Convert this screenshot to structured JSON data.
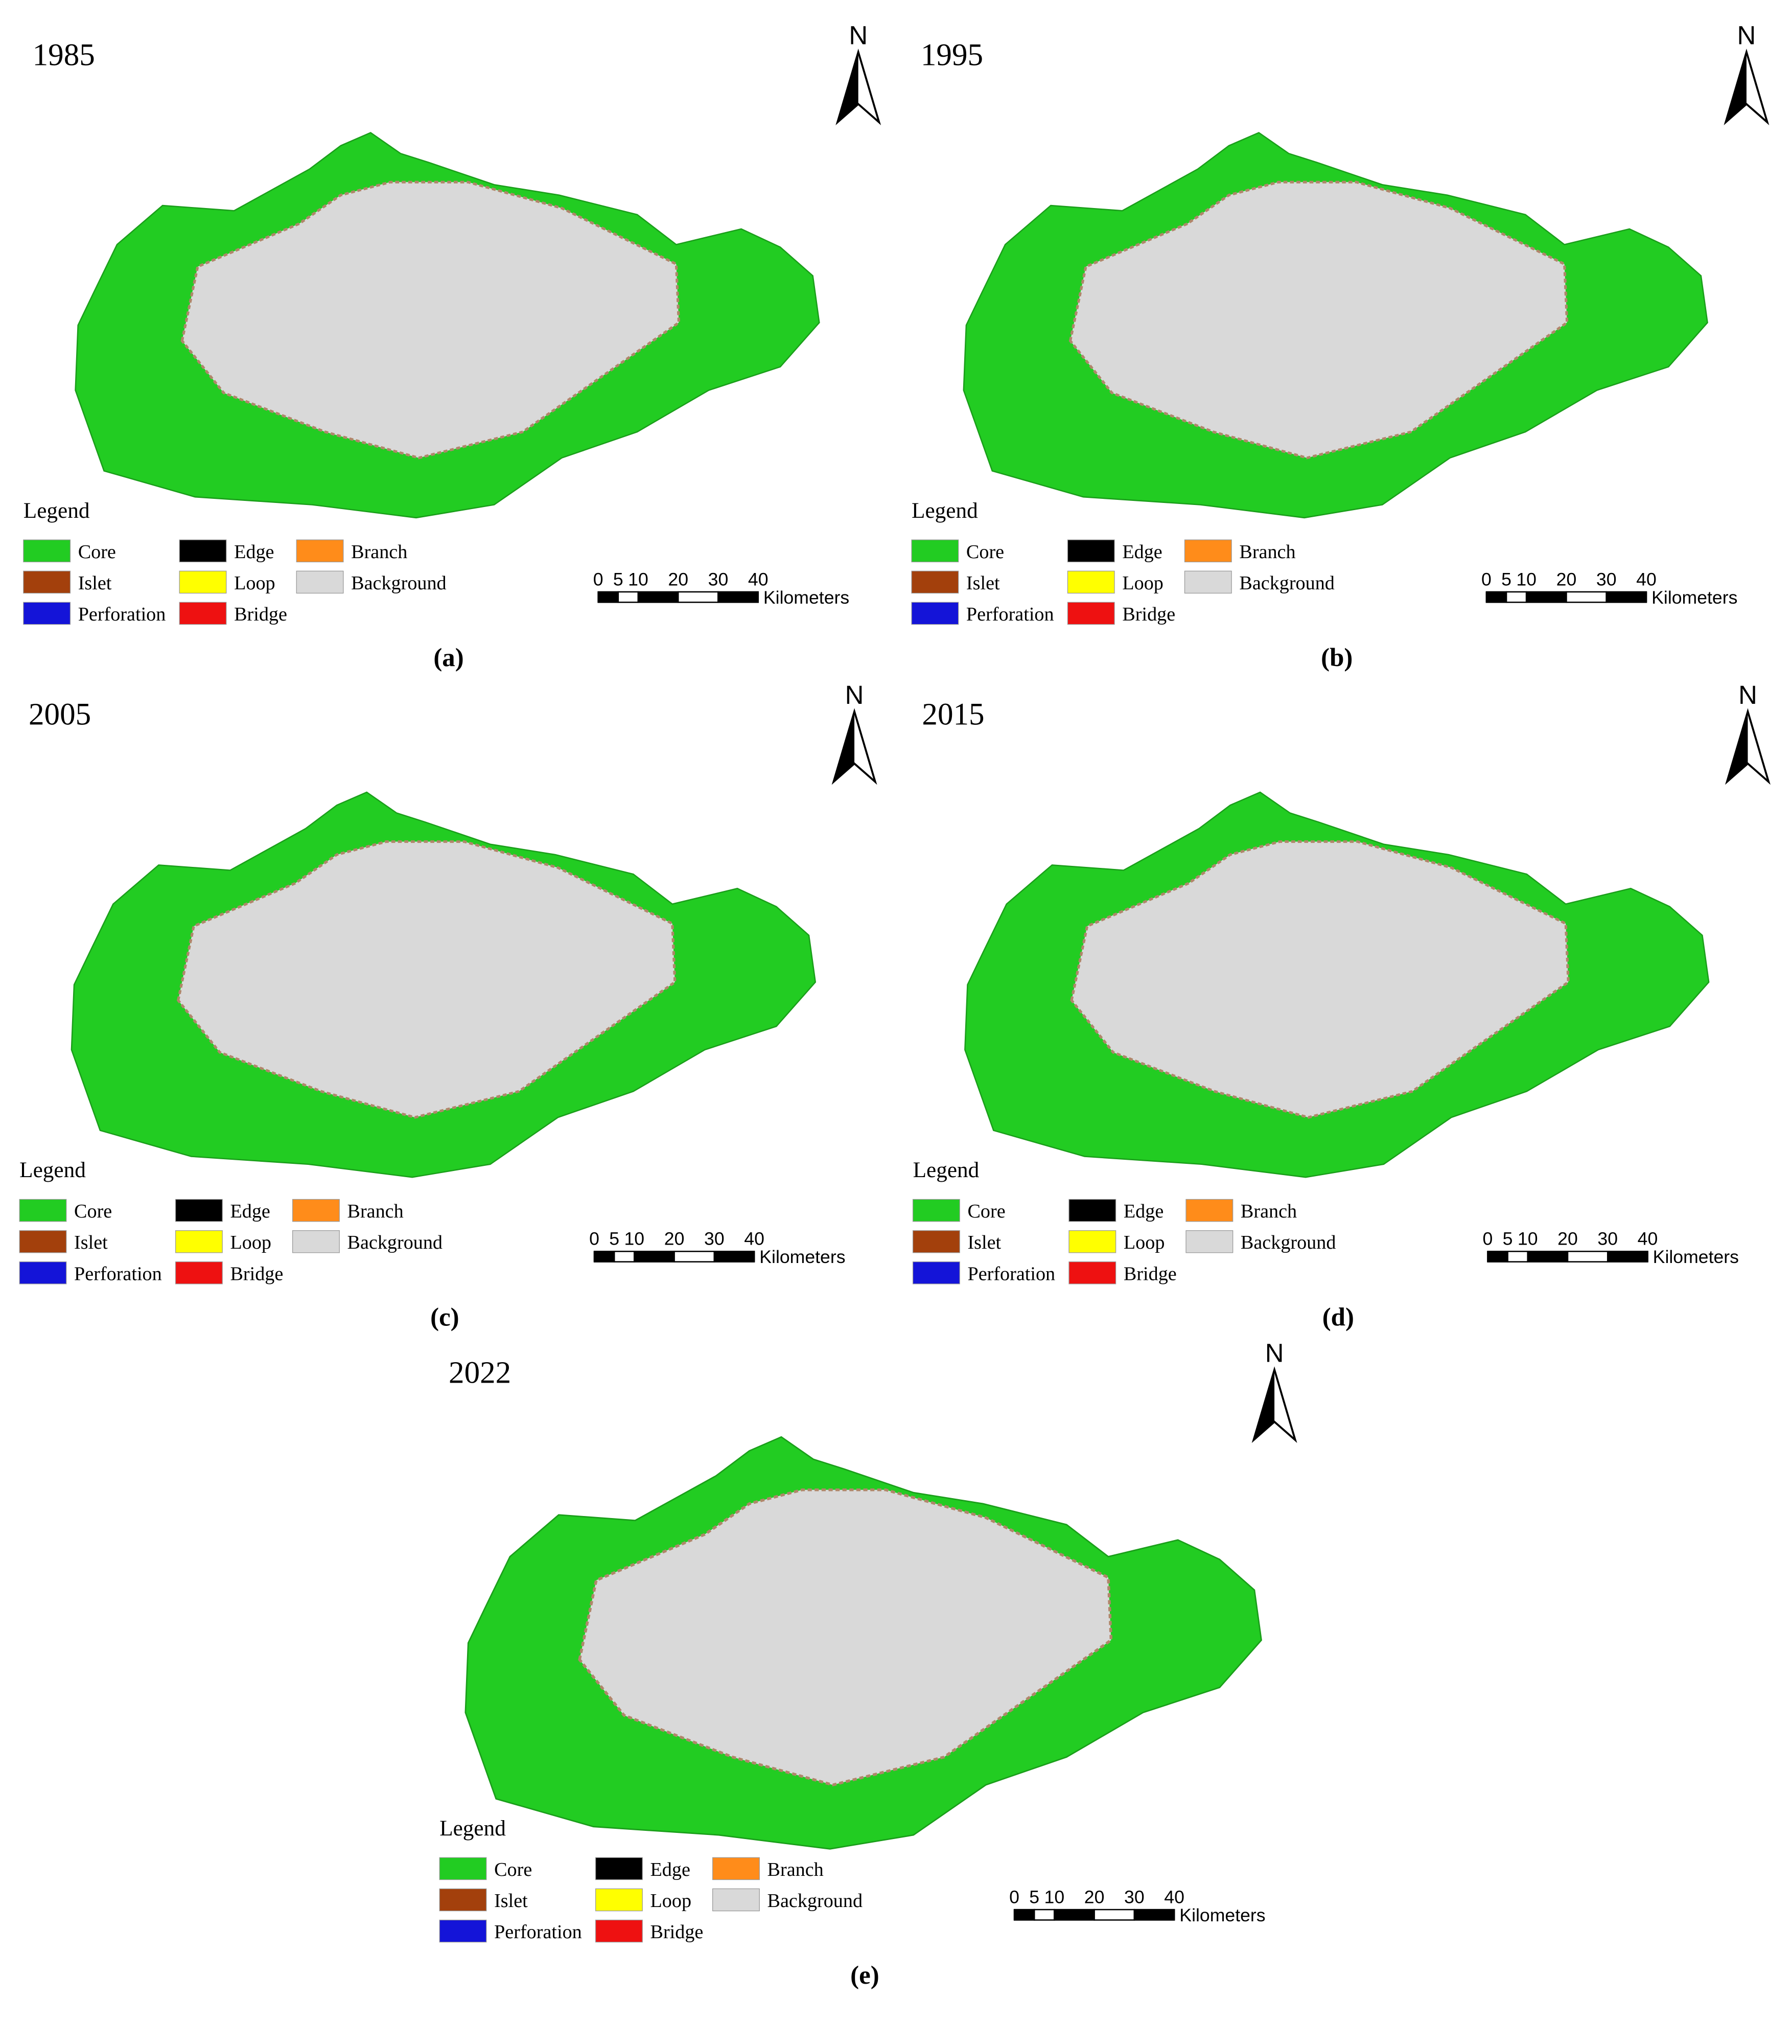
{
  "panels": [
    {
      "year": "1985",
      "label": "(a)",
      "north": "N",
      "legend": {
        "title": "Legend",
        "items": [
          {
            "name": "Core",
            "color": "#22cc22"
          },
          {
            "name": "Islet",
            "color": "#a3400c"
          },
          {
            "name": "Perforation",
            "color": "#1414d8"
          },
          {
            "name": "Edge",
            "color": "#000000"
          },
          {
            "name": "Loop",
            "color": "#ffff00"
          },
          {
            "name": "Bridge",
            "color": "#ee1111"
          },
          {
            "name": "Branch",
            "color": "#ff8c1a"
          },
          {
            "name": "Background",
            "color": "#d9d9d9"
          }
        ]
      },
      "scale": {
        "ticks": [
          0,
          5,
          10,
          20,
          30,
          40
        ],
        "unit": "Kilometers"
      }
    },
    {
      "year": "1995",
      "label": "(b)",
      "north": "N",
      "legend": {
        "title": "Legend",
        "items": [
          {
            "name": "Core",
            "color": "#22cc22"
          },
          {
            "name": "Islet",
            "color": "#a3400c"
          },
          {
            "name": "Perforation",
            "color": "#1414d8"
          },
          {
            "name": "Edge",
            "color": "#000000"
          },
          {
            "name": "Loop",
            "color": "#ffff00"
          },
          {
            "name": "Bridge",
            "color": "#ee1111"
          },
          {
            "name": "Branch",
            "color": "#ff8c1a"
          },
          {
            "name": "Background",
            "color": "#d9d9d9"
          }
        ]
      },
      "scale": {
        "ticks": [
          0,
          5,
          10,
          20,
          30,
          40
        ],
        "unit": "Kilometers"
      }
    },
    {
      "year": "2005",
      "label": "(c)",
      "north": "N",
      "legend": {
        "title": "Legend",
        "items": [
          {
            "name": "Core",
            "color": "#22cc22"
          },
          {
            "name": "Islet",
            "color": "#a3400c"
          },
          {
            "name": "Perforation",
            "color": "#1414d8"
          },
          {
            "name": "Edge",
            "color": "#000000"
          },
          {
            "name": "Loop",
            "color": "#ffff00"
          },
          {
            "name": "Bridge",
            "color": "#ee1111"
          },
          {
            "name": "Branch",
            "color": "#ff8c1a"
          },
          {
            "name": "Background",
            "color": "#d9d9d9"
          }
        ]
      },
      "scale": {
        "ticks": [
          0,
          5,
          10,
          20,
          30,
          40
        ],
        "unit": "Kilometers"
      }
    },
    {
      "year": "2015",
      "label": "(d)",
      "north": "N",
      "legend": {
        "title": "Legend",
        "items": [
          {
            "name": "Core",
            "color": "#22cc22"
          },
          {
            "name": "Islet",
            "color": "#a3400c"
          },
          {
            "name": "Perforation",
            "color": "#1414d8"
          },
          {
            "name": "Edge",
            "color": "#000000"
          },
          {
            "name": "Loop",
            "color": "#ffff00"
          },
          {
            "name": "Bridge",
            "color": "#ee1111"
          },
          {
            "name": "Branch",
            "color": "#ff8c1a"
          },
          {
            "name": "Background",
            "color": "#d9d9d9"
          }
        ]
      },
      "scale": {
        "ticks": [
          0,
          5,
          10,
          20,
          30,
          40
        ],
        "unit": "Kilometers"
      }
    },
    {
      "year": "2022",
      "label": "(e)",
      "north": "N",
      "legend": {
        "title": "Legend",
        "items": [
          {
            "name": "Core",
            "color": "#22cc22"
          },
          {
            "name": "Islet",
            "color": "#a3400c"
          },
          {
            "name": "Perforation",
            "color": "#1414d8"
          },
          {
            "name": "Edge",
            "color": "#000000"
          },
          {
            "name": "Loop",
            "color": "#ffff00"
          },
          {
            "name": "Bridge",
            "color": "#ee1111"
          },
          {
            "name": "Branch",
            "color": "#ff8c1a"
          },
          {
            "name": "Background",
            "color": "#d9d9d9"
          }
        ]
      },
      "scale": {
        "ticks": [
          0,
          5,
          10,
          20,
          30,
          40
        ],
        "unit": "Kilometers"
      }
    }
  ]
}
